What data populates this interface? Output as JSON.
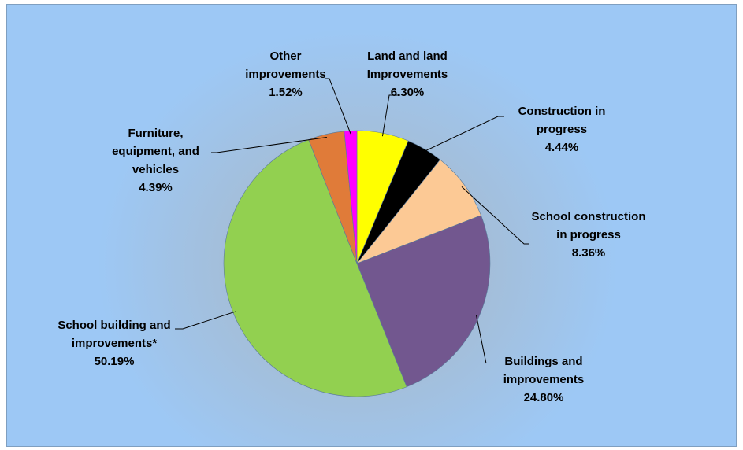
{
  "chart_data": {
    "type": "pie",
    "categories": [
      "Land and land Improvements",
      "Construction in progress",
      "School construction in progress",
      "Buildings and improvements",
      "School building and improvements*",
      "Furniture, equipment, and vehicles",
      "Other improvements"
    ],
    "values": [
      6.3,
      4.44,
      8.36,
      24.8,
      50.19,
      4.39,
      1.52
    ],
    "value_labels": [
      "6.30%",
      "4.44%",
      "8.36%",
      "24.80%",
      "50.19%",
      "4.39%",
      "1.52%"
    ],
    "colors": [
      "#ffff00",
      "#000000",
      "#fcc995",
      "#72578f",
      "#92d050",
      "#e07b39",
      "#ff00ff"
    ]
  }
}
